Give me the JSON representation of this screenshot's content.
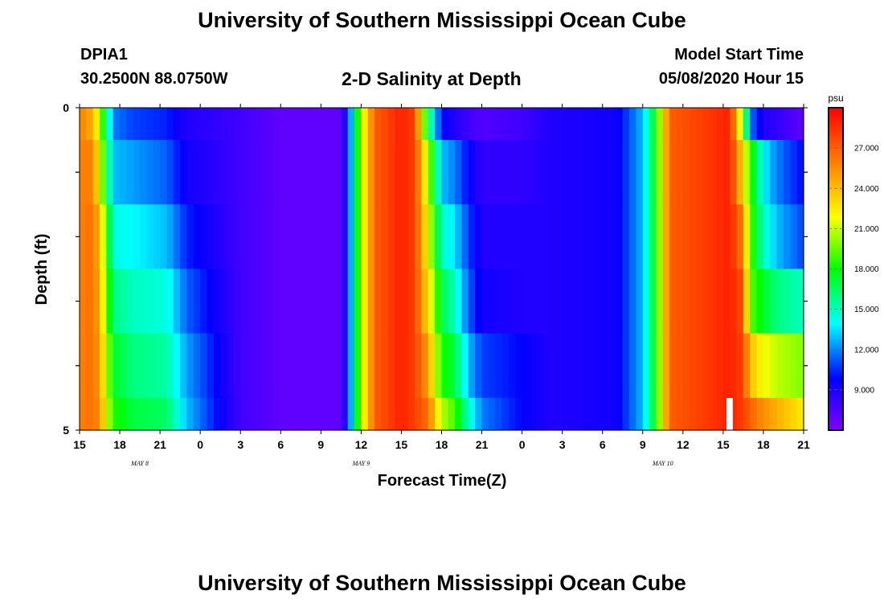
{
  "page": {
    "title_top": "University of Southern Mississippi Ocean Cube",
    "title_bottom": "University of Southern Mississippi Ocean Cube",
    "station_id": "DPIA1",
    "station_coords": "30.2500N 88.0750W",
    "model_start_label": "Model Start Time",
    "model_start_value": "05/08/2020 Hour 15"
  },
  "chart_data": {
    "type": "heatmap",
    "title": "2-D Salinity at Depth",
    "xlabel": "Forecast Time(Z)",
    "ylabel": "Depth (ft)",
    "x_tick_labels": [
      "15",
      "18",
      "21",
      "0",
      "3",
      "6",
      "9",
      "12",
      "15",
      "18",
      "21",
      "0",
      "3",
      "6",
      "9",
      "12",
      "15",
      "18",
      "21"
    ],
    "date_labels": [
      {
        "text": "MAY 8",
        "tick_index": 1.5
      },
      {
        "text": "MAY 9",
        "tick_index": 7
      },
      {
        "text": "MAY 10",
        "tick_index": 14.5
      }
    ],
    "x_range_hours": [
      0,
      54
    ],
    "y_tick_labels": [
      "0",
      "5"
    ],
    "ylim": [
      0,
      5
    ],
    "colorbar": {
      "unit": "psu",
      "ticks": [
        "27.000",
        "24.000",
        "21.000",
        "18.000",
        "15.000",
        "12.000",
        "9.000"
      ],
      "range": [
        6,
        30
      ]
    },
    "depth_layers": [
      "0.0-0.5 ft",
      "0.5-1.5 ft",
      "1.5-2.5 ft",
      "2.5-3.5 ft",
      "3.5-4.5 ft",
      "4.5-5.0 ft"
    ],
    "salinity_keyframes": [
      {
        "hour": 0,
        "values": [
          26.0,
          26.0,
          26.0,
          26.0,
          26.0,
          26.0
        ]
      },
      {
        "hour": 1,
        "values": [
          24.5,
          26.0,
          26.5,
          26.5,
          26.5,
          26.5
        ]
      },
      {
        "hour": 1.5,
        "values": [
          21.0,
          22.0,
          24.0,
          24.5,
          25.0,
          25.5
        ]
      },
      {
        "hour": 2.5,
        "values": [
          12.0,
          13.0,
          14.5,
          16.0,
          17.5,
          18.5
        ]
      },
      {
        "hour": 4,
        "values": [
          11.0,
          12.5,
          14.0,
          15.0,
          16.0,
          17.0
        ]
      },
      {
        "hour": 6.5,
        "values": [
          10.5,
          11.5,
          13.0,
          14.5,
          15.5,
          16.5
        ]
      },
      {
        "hour": 8,
        "values": [
          9.0,
          9.5,
          10.5,
          11.5,
          12.5,
          13.0
        ]
      },
      {
        "hour": 12,
        "values": [
          8.0,
          8.0,
          8.0,
          8.0,
          8.0,
          8.0
        ]
      },
      {
        "hour": 15,
        "values": [
          7.0,
          7.0,
          7.0,
          7.0,
          7.0,
          7.0
        ]
      },
      {
        "hour": 19.5,
        "values": [
          7.0,
          7.0,
          7.0,
          7.0,
          7.0,
          7.0
        ]
      },
      {
        "hour": 20,
        "values": [
          10.0,
          10.0,
          10.0,
          10.0,
          10.0,
          10.0
        ]
      },
      {
        "hour": 21,
        "values": [
          21.0,
          21.0,
          21.0,
          21.0,
          21.0,
          21.0
        ]
      },
      {
        "hour": 22,
        "values": [
          27.0,
          27.0,
          27.0,
          27.0,
          27.0,
          27.0
        ]
      },
      {
        "hour": 24,
        "values": [
          29.0,
          29.0,
          29.0,
          29.0,
          29.0,
          29.0
        ]
      },
      {
        "hour": 25,
        "values": [
          28.0,
          28.0,
          28.0,
          28.0,
          28.0,
          28.0
        ]
      },
      {
        "hour": 26,
        "values": [
          17.0,
          21.0,
          22.0,
          23.0,
          25.0,
          26.5
        ]
      },
      {
        "hour": 27,
        "values": [
          10.0,
          13.0,
          15.0,
          17.0,
          18.5,
          21.0
        ]
      },
      {
        "hour": 28,
        "values": [
          9.0,
          12.0,
          13.5,
          15.0,
          17.0,
          19.0
        ]
      },
      {
        "hour": 29,
        "values": [
          8.0,
          10.0,
          11.0,
          11.5,
          13.0,
          15.0
        ]
      },
      {
        "hour": 30,
        "values": [
          7.5,
          8.5,
          9.0,
          9.5,
          11.0,
          12.0
        ]
      },
      {
        "hour": 33,
        "values": [
          8.0,
          8.5,
          9.0,
          9.0,
          10.0,
          10.0
        ]
      },
      {
        "hour": 35,
        "values": [
          9.0,
          9.0,
          9.0,
          9.0,
          9.0,
          9.0
        ]
      },
      {
        "hour": 40,
        "values": [
          9.5,
          9.5,
          9.5,
          9.5,
          9.5,
          9.5
        ]
      },
      {
        "hour": 42,
        "values": [
          13.0,
          13.0,
          13.0,
          13.0,
          13.0,
          13.0
        ]
      },
      {
        "hour": 43,
        "values": [
          18.0,
          18.0,
          18.0,
          18.0,
          18.0,
          18.0
        ]
      },
      {
        "hour": 44,
        "values": [
          27.0,
          27.0,
          27.0,
          27.0,
          27.0,
          27.0
        ]
      },
      {
        "hour": 48.5,
        "values": [
          29.0,
          29.0,
          29.0,
          29.0,
          29.0,
          29.0
        ]
      },
      {
        "hour": 49.5,
        "values": [
          20.0,
          23.0,
          26.0,
          27.5,
          28.0,
          28.0
        ]
      },
      {
        "hour": 50,
        "values": [
          12.0,
          19.0,
          19.5,
          19.5,
          24.0,
          27.0
        ]
      },
      {
        "hour": 51,
        "values": [
          9.0,
          14.0,
          15.0,
          17.5,
          22.0,
          25.5
        ]
      },
      {
        "hour": 52,
        "values": [
          8.5,
          12.0,
          13.0,
          16.0,
          21.0,
          24.5
        ]
      },
      {
        "hour": 54,
        "values": [
          7.0,
          10.0,
          11.0,
          15.0,
          20.0,
          22.5
        ]
      }
    ],
    "notes": "White marker bar near hour 48 in deepest layer"
  },
  "colors": {
    "colormap": [
      "#8000ff",
      "#0000ff",
      "#00ffff",
      "#00ff00",
      "#ffff00",
      "#ff8000",
      "#ff0000"
    ],
    "frame": "#000000",
    "background": "#ffffff"
  }
}
